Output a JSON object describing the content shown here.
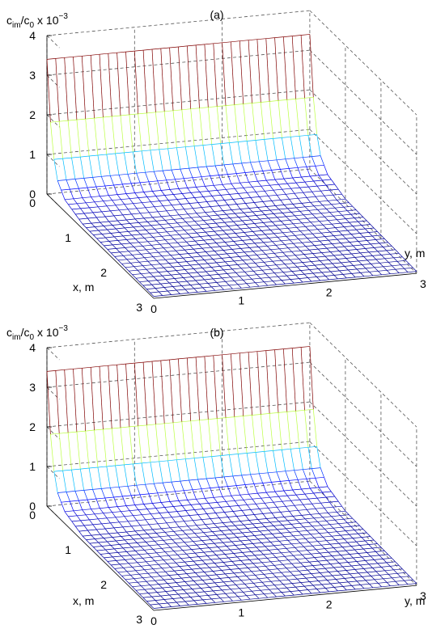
{
  "figure": {
    "panels": [
      {
        "label": "(a)",
        "zlabel": {
          "c": "c",
          "im": "im",
          "slash": "/c",
          "zero": "0",
          "mult": "x 10",
          "exp": "−3"
        },
        "xlabel": "x, m",
        "ylabel": "y, m"
      },
      {
        "label": "(b)",
        "zlabel": {
          "c": "c",
          "im": "im",
          "slash": "/c",
          "zero": "0",
          "mult": "x 10",
          "exp": "−3"
        },
        "xlabel": "x, m",
        "ylabel": "y, m"
      }
    ]
  },
  "chart_data": [
    {
      "type": "surface",
      "title": "(a)",
      "xlabel": "x, m",
      "ylabel": "y, m",
      "zlabel": "c_im/c_0 x 10^-3",
      "xlim": [
        0,
        3
      ],
      "ylim": [
        0,
        3
      ],
      "zlim": [
        0,
        4
      ],
      "x_ticks": [
        "0",
        "1",
        "2",
        "3"
      ],
      "y_ticks": [
        "0",
        "1",
        "2",
        "3"
      ],
      "z_ticks": [
        "0",
        "1",
        "2",
        "3",
        "4"
      ],
      "z_peak": 3.4,
      "z_at_x": {
        "x": [
          0,
          0.1,
          0.2,
          0.3,
          0.5,
          1.0,
          3.0
        ],
        "z": [
          3.4,
          1.9,
          1.05,
          0.6,
          0.3,
          0.12,
          0.05
        ]
      },
      "colormap": "jet",
      "grid": true
    },
    {
      "type": "surface",
      "title": "(b)",
      "xlabel": "x, m",
      "ylabel": "y, m",
      "zlabel": "c_im/c_0 x 10^-3",
      "xlim": [
        0,
        3
      ],
      "ylim": [
        0,
        3
      ],
      "zlim": [
        0,
        4
      ],
      "x_ticks": [
        "0",
        "1",
        "2",
        "3"
      ],
      "y_ticks": [
        "0",
        "1",
        "2",
        "3"
      ],
      "z_ticks": [
        "0",
        "1",
        "2",
        "3",
        "4"
      ],
      "z_peak": 3.4,
      "z_at_x": {
        "x": [
          0,
          0.1,
          0.2,
          0.3,
          0.5,
          1.0,
          3.0
        ],
        "z": [
          3.4,
          1.9,
          1.05,
          0.6,
          0.3,
          0.12,
          0.05
        ]
      },
      "colormap": "jet",
      "grid": true
    }
  ]
}
